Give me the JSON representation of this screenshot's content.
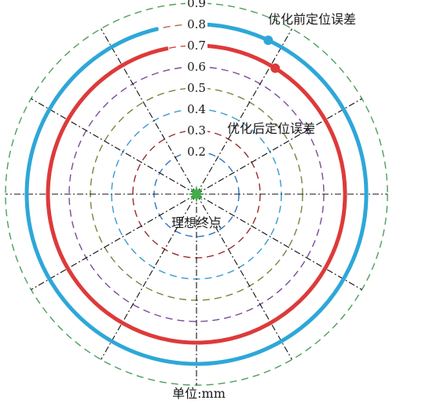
{
  "chart_data": {
    "type": "polar-error-rings",
    "unit_label": "单位:mm",
    "center_label": "理想终点",
    "reference_rings": [
      {
        "value": 0.2,
        "label": "0.2",
        "color": "#2e73b8"
      },
      {
        "value": 0.3,
        "label": "0.3",
        "color": "#9b2b2b"
      },
      {
        "value": 0.4,
        "label": "0.4",
        "color": "#3a9ad0"
      },
      {
        "value": 0.5,
        "label": "0.5",
        "color": "#6f8a3c"
      },
      {
        "value": 0.6,
        "label": "0.6",
        "color": "#7b4a9a"
      },
      {
        "value": 0.7,
        "label": "0.7",
        "color": "#d8433c"
      },
      {
        "value": 0.8,
        "label": "0.8",
        "color": "#b06a4a"
      },
      {
        "value": 0.9,
        "label": "0.9",
        "color": "#4aa05a"
      }
    ],
    "series": [
      {
        "name": "优化前定位误差",
        "radius": 0.8,
        "color": "#2ea7d8",
        "gap_start_deg": 90,
        "gap_end_deg": 103
      },
      {
        "name": "优化后定位误差",
        "radius": 0.7,
        "color": "#dd3a3a",
        "gap_start_deg": 90,
        "gap_end_deg": 101
      }
    ],
    "spokes": 12,
    "center_marker_color": "#3fae49"
  }
}
